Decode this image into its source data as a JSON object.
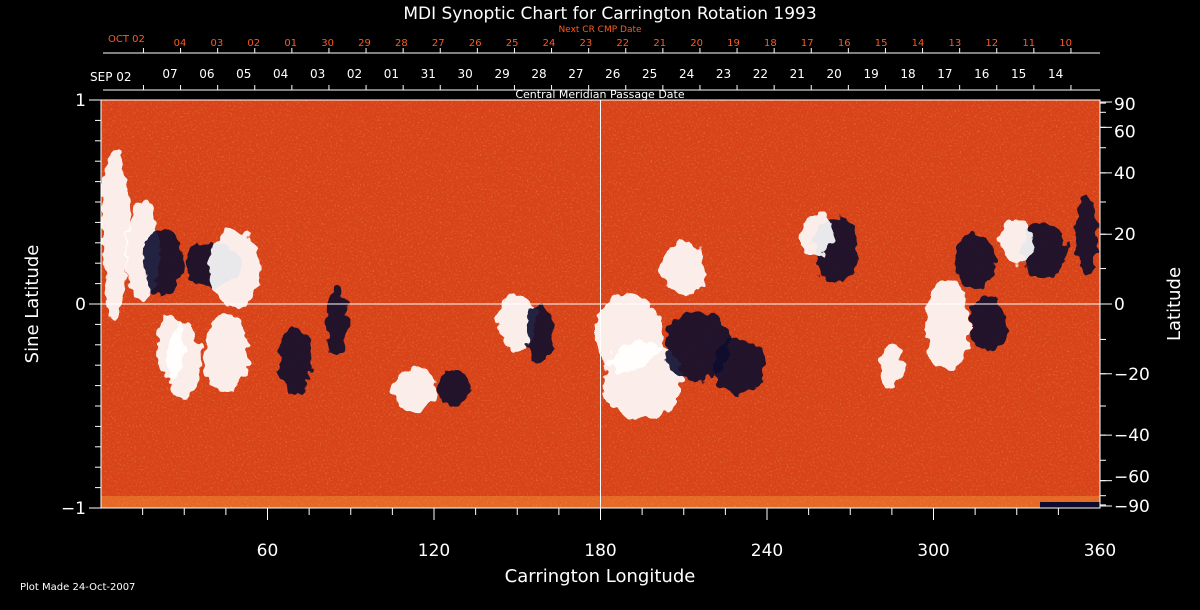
{
  "chart_data": {
    "type": "heatmap",
    "title": "MDI Synoptic Chart for Carrington Rotation 1993",
    "xlabel": "Carrington Longitude",
    "ylabel_left": "Sine Latitude",
    "ylabel_right": "Latitude",
    "xlim": [
      0,
      360
    ],
    "ylim": [
      -1,
      1
    ],
    "x_ticks": [
      "60",
      "120",
      "180",
      "240",
      "300",
      "360"
    ],
    "x_tick_values": [
      60,
      120,
      180,
      240,
      300,
      360
    ],
    "y_left_ticks": [
      "1",
      "0",
      "−1"
    ],
    "y_left_tick_values": [
      1,
      0,
      -1
    ],
    "y_right_ticks": [
      "90",
      "60",
      "40",
      "20",
      "0",
      "−20",
      "−40",
      "−60",
      "−90"
    ],
    "y_right_tick_values": [
      90,
      60,
      40,
      20,
      0,
      -20,
      -40,
      -60,
      -90
    ],
    "grid": "crosshair at longitude 180 and sine latitude 0",
    "cmp_axis": {
      "label": "Central Meridian Passage Date",
      "start_label": "SEP 02",
      "ticks": [
        "07",
        "06",
        "05",
        "04",
        "03",
        "02",
        "01",
        "31",
        "30",
        "29",
        "28",
        "27",
        "26",
        "25",
        "24",
        "23",
        "22",
        "21",
        "20",
        "19",
        "18",
        "17",
        "16",
        "15",
        "14"
      ]
    },
    "next_cmp_axis": {
      "label": "Next CR CMP Date",
      "start_label": "OCT 02",
      "ticks": [
        "04",
        "03",
        "02",
        "01",
        "30",
        "29",
        "28",
        "27",
        "26",
        "25",
        "24",
        "23",
        "22",
        "21",
        "20",
        "19",
        "18",
        "17",
        "16",
        "15",
        "14",
        "13",
        "12",
        "11",
        "10"
      ]
    },
    "colors": {
      "background": "#d9431a",
      "positive": "#ffffff",
      "negative": "#0d0b2e",
      "annotation": "#ff5a1e"
    }
  },
  "footer": {
    "plot_made": "Plot Made 24-Oct-2007"
  }
}
